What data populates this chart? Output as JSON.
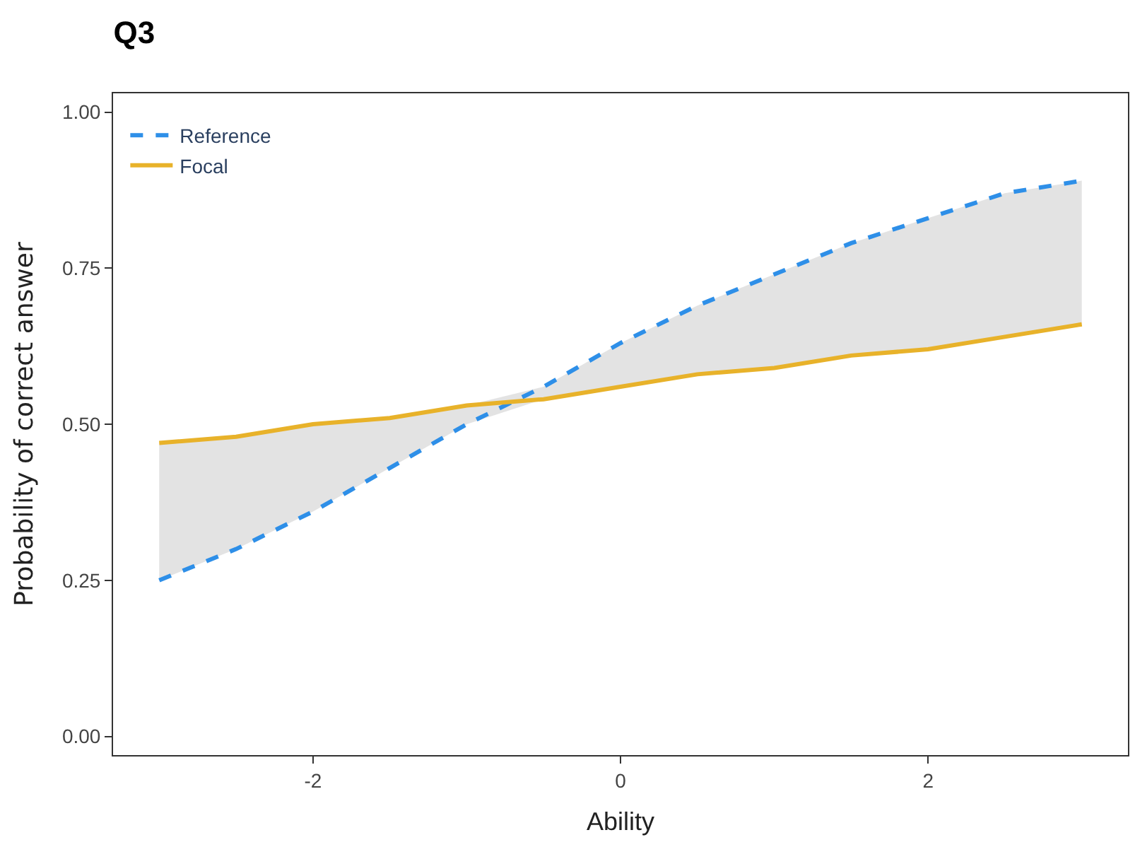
{
  "chart_data": {
    "type": "line",
    "title": "Q3",
    "xlabel": "Ability",
    "ylabel": "Probability of correct answer",
    "x": [
      -3,
      -2.5,
      -2,
      -1.5,
      -1,
      -0.5,
      0,
      0.5,
      1,
      1.5,
      2,
      2.5,
      3
    ],
    "xlim": [
      -3.3,
      3.3
    ],
    "xticks": [
      {
        "value": -2,
        "label": "-2"
      },
      0,
      2
    ],
    "ylim": [
      -0.03,
      1.03
    ],
    "yticks": [
      {
        "value": 0,
        "label": "0.00"
      },
      {
        "value": 0.25,
        "label": "0.25"
      },
      {
        "value": 0.5,
        "label": "0.50"
      },
      {
        "value": 0.75,
        "label": "0.75"
      },
      {
        "value": 1,
        "label": "1.00"
      }
    ],
    "legend": "top left",
    "marker": "none",
    "series": [
      {
        "name": "Reference",
        "color": "#2e8fe8",
        "line_style": "dashed",
        "values": [
          0.25,
          0.3,
          0.36,
          0.43,
          0.5,
          0.56,
          0.63,
          0.69,
          0.74,
          0.79,
          0.83,
          0.87,
          0.89
        ],
        "lower": [
          0.25,
          0.3,
          0.36,
          0.43,
          0.5,
          0.54,
          0.56,
          0.58,
          0.59,
          0.61,
          0.62,
          0.64,
          0.66
        ],
        "upper": [
          0.47,
          0.48,
          0.5,
          0.51,
          0.53,
          0.56,
          0.63,
          0.69,
          0.74,
          0.79,
          0.83,
          0.87,
          0.89
        ]
      },
      {
        "name": "Focal",
        "color": "#e8b22a",
        "line_style": "solid",
        "values": [
          0.47,
          0.48,
          0.5,
          0.51,
          0.53,
          0.54,
          0.56,
          0.58,
          0.59,
          0.61,
          0.62,
          0.64,
          0.66
        ]
      }
    ]
  }
}
